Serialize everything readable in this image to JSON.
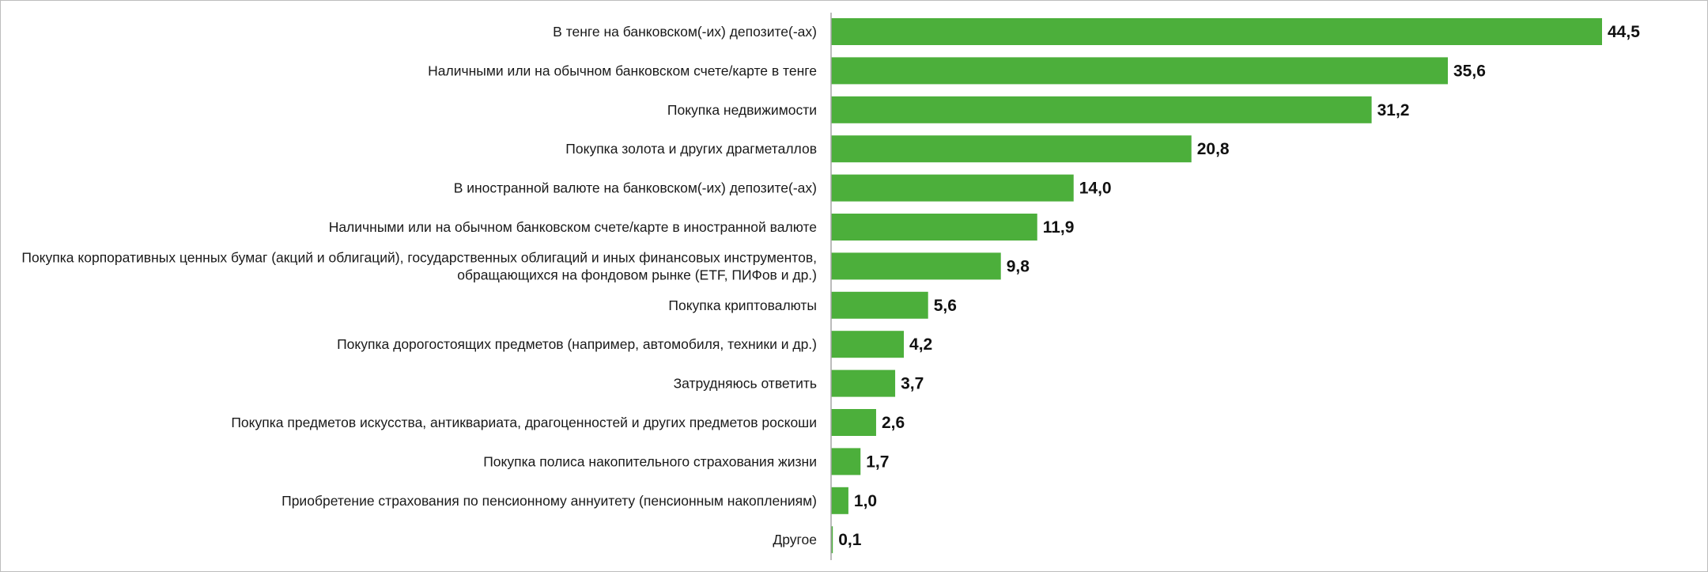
{
  "chart_data": {
    "type": "bar",
    "orientation": "horizontal",
    "title": "",
    "xlabel": "",
    "ylabel": "",
    "categories": [
      [
        "В тенге на банковском(-их) депозите(-ах)"
      ],
      [
        "Наличными или на обычном банковском счете/карте в тенге"
      ],
      [
        "Покупка недвижимости"
      ],
      [
        "Покупка золота и других драгметаллов"
      ],
      [
        "В иностранной валюте на банковском(-их) депозите(-ах)"
      ],
      [
        "Наличными или на обычном банковском счете/карте в иностранной валюте"
      ],
      [
        "Покупка корпоративных ценных бумаг (акций и облигаций), государственных облигаций и иных финансовых инструментов,",
        "обращающихся на фондовом рынке (ETF, ПИФов и др.)"
      ],
      [
        "Покупка криптовалюты"
      ],
      [
        "Покупка дорогостоящих предметов (например, автомобиля, техники и др.)"
      ],
      [
        "Затрудняюсь ответить"
      ],
      [
        "Покупка предметов искусства, антиквариата, драгоценностей и других предметов роскоши"
      ],
      [
        "Покупка полиса накопительного страхования жизни"
      ],
      [
        "Приобретение страхования по пенсионному аннуитету (пенсионным накоплениям)"
      ],
      [
        "Другое"
      ]
    ],
    "values": [
      44.5,
      35.6,
      31.2,
      20.8,
      14.0,
      11.9,
      9.8,
      5.6,
      4.2,
      3.7,
      2.6,
      1.7,
      1.0,
      0.1
    ],
    "value_labels": [
      "44,5",
      "35,6",
      "31,2",
      "20,8",
      "14,0",
      "11,9",
      "9,8",
      "5,6",
      "4,2",
      "3,7",
      "2,6",
      "1,7",
      "1,0",
      "0,1"
    ],
    "bar_color": "#4caf3b",
    "axis_color": "#a6a6a6",
    "xlim": [
      0,
      44.5
    ],
    "grid": false,
    "legend": "none"
  }
}
